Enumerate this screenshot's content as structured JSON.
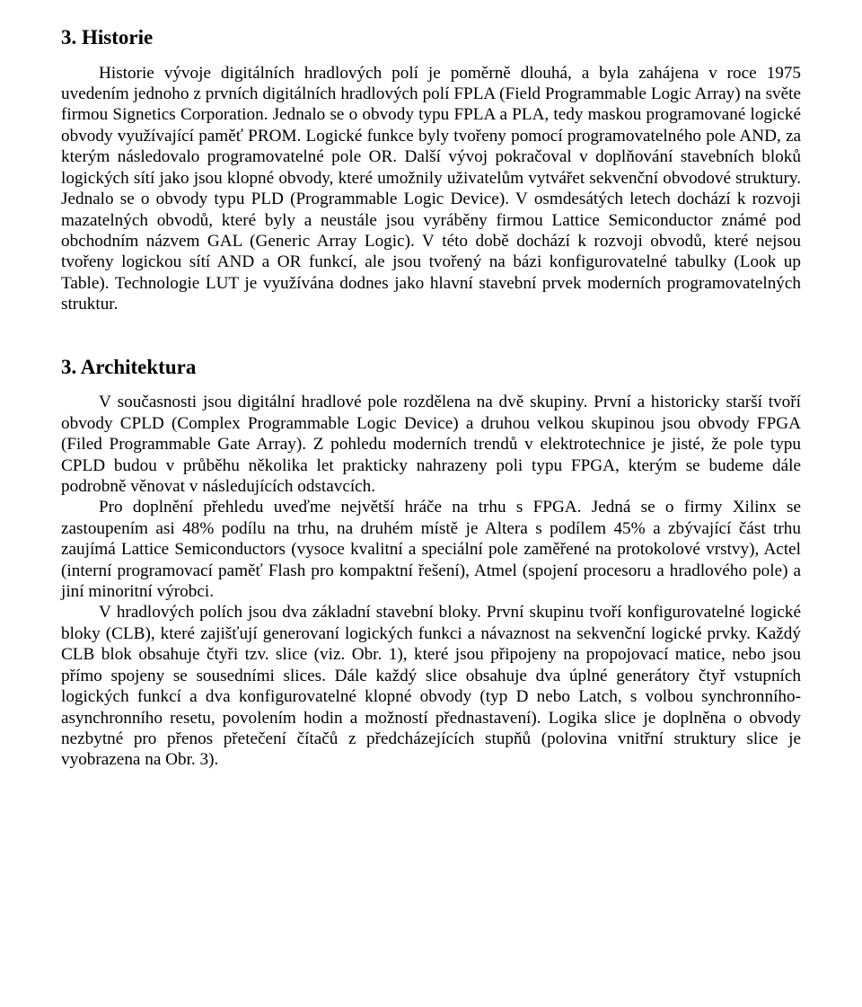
{
  "section1": {
    "heading": "3. Historie",
    "p1": "Historie vývoje digitálních hradlových polí je poměrně dlouhá, a byla zahájena v roce 1975 uvedením jednoho z prvních digitálních hradlových polí FPLA (Field Programmable Logic Array) na světe firmou Signetics Corporation. Jednalo se o obvody typu FPLA a PLA, tedy maskou programované logické obvody využívající paměť PROM. Logické funkce byly tvořeny pomocí programovatelného pole AND, za kterým následovalo programovatelné pole OR. Další vývoj pokračoval v doplňování stavebních bloků logických sítí jako jsou klopné obvody, které umožnily uživatelům vytvářet sekvenční obvodové struktury. Jednalo se o obvody typu PLD (Programmable Logic Device). V osmdesátých letech dochází k rozvoji mazatelných obvodů, které byly a neustále jsou vyráběny firmou Lattice Semiconductor známé pod obchodním názvem GAL (Generic Array Logic). V této době dochází k rozvoji obvodů, které nejsou tvořeny logickou sítí AND a OR funkcí, ale jsou tvořený na bázi konfigurovatelné tabulky (Look up Table). Technologie LUT je využívána dodnes jako hlavní stavební prvek moderních programovatelných struktur."
  },
  "section2": {
    "heading": "3. Architektura",
    "p1": "V současnosti jsou digitální hradlové pole rozdělena na dvě skupiny. První a historicky starší tvoří obvody CPLD (Complex Programmable Logic Device) a druhou velkou skupinou jsou obvody FPGA (Filed Programmable Gate Array). Z pohledu moderních trendů v elektrotechnice je jisté, že pole typu CPLD budou v průběhu několika let prakticky nahrazeny poli typu FPGA, kterým se budeme dále podrobně věnovat v následujících odstavcích.",
    "p2": "Pro doplnění přehledu uveďme největší hráče na trhu s FPGA. Jedná se o firmy Xilinx se zastoupením asi 48% podílu na trhu, na druhém místě je Altera s podílem 45% a zbývající část trhu zaujímá Lattice Semiconductors (vysoce kvalitní a speciální pole zaměřené na protokolové vrstvy), Actel (interní programovací paměť Flash pro kompaktní řešení), Atmel (spojení procesoru a hradlového pole) a jiní minoritní výrobci.",
    "p3": "V hradlových polích jsou dva základní stavební bloky. První skupinu tvoří konfigurovatelné logické bloky (CLB), které zajišťují generovaní logických funkci a návaznost na sekvenční logické prvky. Každý CLB blok obsahuje čtyři tzv. slice (viz. Obr. 1), které jsou připojeny na propojovací matice, nebo jsou přímo spojeny se sousedními slices. Dále každý slice obsahuje dva úplné generátory čtyř vstupních logických funkcí a dva konfigurovatelné klopné obvody (typ D nebo Latch, s volbou synchronního-asynchronního resetu, povolením hodin a možností přednastavení). Logika slice je doplněna o obvody nezbytné pro přenos přetečení čítačů z předcházejících stupňů (polovina vnitřní struktury slice je vyobrazena na Obr. 3)."
  }
}
